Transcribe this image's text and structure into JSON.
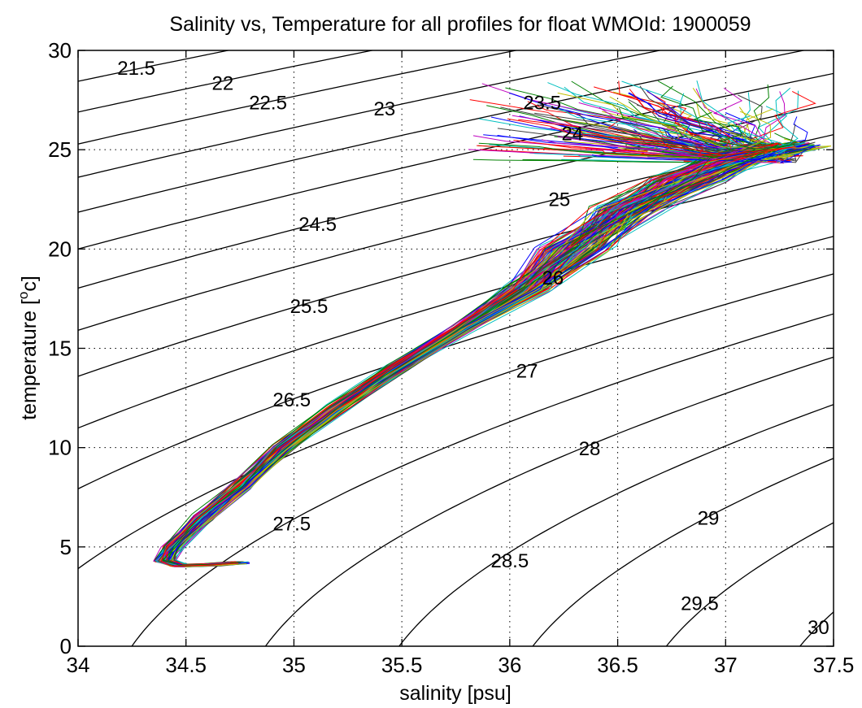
{
  "chart_data": {
    "type": "line",
    "title": "Salinity vs, Temperature for all profiles for float WMOId: 1900059",
    "xlabel": "salinity [psu]",
    "ylabel_main": "temperature [",
    "ylabel_sup": "o",
    "ylabel_end": "c]",
    "xlim": [
      34,
      37.5
    ],
    "ylim": [
      0,
      30
    ],
    "grid": true,
    "x_ticks": [
      34,
      34.5,
      35,
      35.5,
      36,
      36.5,
      37,
      37.5
    ],
    "x_tick_labels": [
      "34",
      "34.5",
      "35",
      "35.5",
      "36",
      "36.5",
      "37",
      "37.5"
    ],
    "y_ticks": [
      0,
      5,
      10,
      15,
      20,
      25,
      30
    ],
    "y_tick_labels": [
      "0",
      "5",
      "10",
      "15",
      "20",
      "25",
      "30"
    ],
    "density_contours": [
      {
        "label": "21.5",
        "value": 21.5,
        "label_at": [
          34.27,
          29.1
        ]
      },
      {
        "label": "22",
        "value": 22.0,
        "label_at": [
          34.67,
          28.35
        ]
      },
      {
        "label": "22.5",
        "value": 22.5,
        "label_at": [
          34.88,
          27.35
        ]
      },
      {
        "label": "23",
        "value": 23.0,
        "label_at": [
          35.42,
          27.05
        ]
      },
      {
        "label": "23.5",
        "value": 23.5,
        "label_at": [
          36.15,
          27.35
        ]
      },
      {
        "label": "24",
        "value": 24.0,
        "label_at": [
          36.29,
          25.8
        ]
      },
      {
        "label": "24.5",
        "value": 24.5,
        "label_at": [
          35.11,
          21.25
        ]
      },
      {
        "label": "25",
        "value": 25.0,
        "label_at": [
          36.23,
          22.5
        ]
      },
      {
        "label": "25.5",
        "value": 25.5,
        "label_at": [
          35.07,
          17.1
        ]
      },
      {
        "label": "26",
        "value": 26.0,
        "label_at": [
          36.2,
          18.55
        ]
      },
      {
        "label": "26.5",
        "value": 26.5,
        "label_at": [
          34.99,
          12.4
        ]
      },
      {
        "label": "27",
        "value": 27.0,
        "label_at": [
          36.08,
          13.85
        ]
      },
      {
        "label": "27.5",
        "value": 27.5,
        "label_at": [
          34.99,
          6.15
        ]
      },
      {
        "label": "28",
        "value": 28.0,
        "label_at": [
          36.37,
          9.95
        ]
      },
      {
        "label": "28.5",
        "value": 28.5,
        "label_at": [
          36.0,
          4.3
        ]
      },
      {
        "label": "29",
        "value": 29.0,
        "label_at": [
          36.92,
          6.45
        ]
      },
      {
        "label": "29.5",
        "value": 29.5,
        "label_at": [
          36.88,
          2.15
        ]
      },
      {
        "label": "30",
        "value": 30.0,
        "label_at": [
          37.43,
          0.95
        ]
      }
    ],
    "profile_count": 150,
    "profile_colors": [
      "#0000ff",
      "#008000",
      "#ff0000",
      "#00bfbf",
      "#bf00bf",
      "#bfbf00",
      "#404040"
    ],
    "mean_profile": [
      {
        "t": 27.5,
        "s": 37.05
      },
      {
        "t": 26.8,
        "s": 37.25
      },
      {
        "t": 26.0,
        "s": 37.35
      },
      {
        "t": 25.2,
        "s": 37.3
      },
      {
        "t": 24.5,
        "s": 37.05
      },
      {
        "t": 23.5,
        "s": 36.82
      },
      {
        "t": 22.0,
        "s": 36.55
      },
      {
        "t": 20.0,
        "s": 36.3
      },
      {
        "t": 18.0,
        "s": 36.08
      },
      {
        "t": 16.0,
        "s": 35.78
      },
      {
        "t": 14.0,
        "s": 35.48
      },
      {
        "t": 12.0,
        "s": 35.2
      },
      {
        "t": 10.0,
        "s": 34.95
      },
      {
        "t": 8.0,
        "s": 34.75
      },
      {
        "t": 6.5,
        "s": 34.58
      },
      {
        "t": 5.0,
        "s": 34.44
      },
      {
        "t": 4.3,
        "s": 34.4
      },
      {
        "t": 4.05,
        "s": 34.48
      },
      {
        "t": 4.1,
        "s": 34.62
      },
      {
        "t": 4.2,
        "s": 34.75
      }
    ]
  }
}
